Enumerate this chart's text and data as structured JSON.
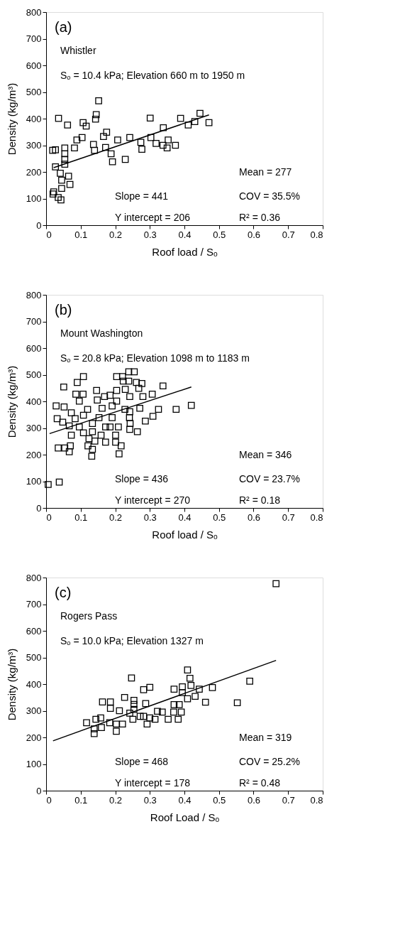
{
  "chart_data": [
    {
      "type": "scatter",
      "xlabel": "Roof load / Sₒ",
      "ylabel": "Density (kg/m³)",
      "xlim": [
        0,
        0.8
      ],
      "ylim": [
        0,
        800
      ],
      "xticks": [
        0,
        0.1,
        0.2,
        0.3,
        0.4,
        0.5,
        0.6,
        0.7,
        0.8
      ],
      "yticks": [
        0,
        100,
        200,
        300,
        400,
        500,
        600,
        700,
        800
      ],
      "grid": false,
      "annotations": [
        "(a)",
        "Whistler",
        "Sₒ = 10.4 kPa; Elevation 660 m to 1950 m",
        "Mean = 277",
        "COV = 35.5%",
        "R² = 0.36",
        "Slope = 441",
        "Y intercept = 206"
      ],
      "series": [
        {
          "type": "scatter",
          "marker": "square",
          "color": "#000000",
          "x": [
            0.019,
            0.027,
            0.036,
            0.062,
            0.054,
            0.054,
            0.054,
            0.054,
            0.027,
            0.041,
            0.045,
            0.065,
            0.069,
            0.045,
            0.022,
            0.02,
            0.035,
            0.043,
            0.082,
            0.089,
            0.104,
            0.107,
            0.116,
            0.137,
            0.14,
            0.143,
            0.145,
            0.152,
            0.166,
            0.175,
            0.172,
            0.188,
            0.192,
            0.207,
            0.229,
            0.242,
            0.274,
            0.277,
            0.301,
            0.303,
            0.318,
            0.339,
            0.338,
            0.353,
            0.35,
            0.374,
            0.389,
            0.411,
            0.43,
            0.445,
            0.471
          ],
          "values": [
            281,
            283,
            401,
            376,
            290,
            268,
            247,
            229,
            219,
            195,
            169,
            184,
            153,
            138,
            125,
            117,
            104,
            95,
            290,
            320,
            329,
            385,
            372,
            303,
            281,
            398,
            415,
            467,
            333,
            349,
            292,
            268,
            238,
            320,
            247,
            329,
            311,
            285,
            402,
            329,
            307,
            366,
            300,
            320,
            290,
            300,
            401,
            376,
            389,
            420,
            385
          ]
        },
        {
          "type": "line",
          "line_style": "solid",
          "marker": "none",
          "color": "#000000",
          "x": [
            0.022,
            0.471
          ],
          "values": [
            216,
            414
          ]
        }
      ]
    },
    {
      "type": "scatter",
      "xlabel": "Roof load / Sₒ",
      "ylabel": "Density (kg/m³)",
      "xlim": [
        0,
        0.8
      ],
      "ylim": [
        0,
        800
      ],
      "xticks": [
        0,
        0.1,
        0.2,
        0.3,
        0.4,
        0.5,
        0.6,
        0.7,
        0.8
      ],
      "yticks": [
        0,
        100,
        200,
        300,
        400,
        500,
        600,
        700,
        800
      ],
      "grid": false,
      "annotations": [
        "(b)",
        "Mount Washington",
        "Sₒ = 20.8 kPa; Elevation 1098 m to 1183 m",
        "Mean = 346",
        "COV = 23.7%",
        "R² = 0.18",
        "Slope = 436",
        "Y intercept = 270"
      ],
      "series": [
        {
          "type": "scatter",
          "marker": "square",
          "color": "#000000",
          "x": [
            0.006,
            0.038,
            0.051,
            0.09,
            0.108,
            0.107,
            0.096,
            0.029,
            0.052,
            0.032,
            0.048,
            0.067,
            0.084,
            0.073,
            0.073,
            0.035,
            0.054,
            0.07,
            0.067,
            0.096,
            0.108,
            0.12,
            0.124,
            0.121,
            0.134,
            0.132,
            0.141,
            0.134,
            0.146,
            0.148,
            0.153,
            0.159,
            0.162,
            0.169,
            0.172,
            0.172,
            0.185,
            0.185,
            0.191,
            0.201,
            0.201,
            0.204,
            0.204,
            0.204,
            0.209,
            0.211,
            0.217,
            0.221,
            0.223,
            0.229,
            0.228,
            0.239,
            0.255,
            0.239,
            0.242,
            0.242,
            0.241,
            0.243,
            0.242,
            0.264,
            0.261,
            0.277,
            0.268,
            0.271,
            0.28,
            0.287,
            0.307,
            0.309,
            0.325,
            0.338,
            0.376,
            0.42,
            0.134,
            0.108,
            0.086,
            0.191
          ],
          "values": [
            88,
            97,
            454,
            471,
            493,
            427,
            401,
            383,
            379,
            335,
            322,
            308,
            335,
            357,
            273,
            225,
            225,
            233,
            211,
            304,
            282,
            370,
            260,
            233,
            220,
            194,
            251,
            317,
            441,
            405,
            339,
            273,
            374,
            418,
            304,
            247,
            423,
            304,
            339,
            273,
            247,
            493,
            441,
            401,
            304,
            203,
            233,
            493,
            476,
            445,
            370,
            511,
            511,
            476,
            418,
            361,
            339,
            317,
            295,
            286,
            471,
            467,
            449,
            374,
            418,
            326,
            427,
            344,
            370,
            458,
            370,
            385,
            286,
            348,
            427,
            383
          ]
        },
        {
          "type": "line",
          "line_style": "solid",
          "marker": "none",
          "color": "#000000",
          "x": [
            0.01,
            0.42
          ],
          "values": [
            279,
            454
          ]
        }
      ]
    },
    {
      "type": "scatter",
      "xlabel": "Roof Load / Sₒ",
      "ylabel": "Density (kg/m³)",
      "xlim": [
        0,
        0.8
      ],
      "ylim": [
        0,
        800
      ],
      "xticks": [
        0,
        0.1,
        0.2,
        0.3,
        0.4,
        0.5,
        0.6,
        0.7,
        0.8
      ],
      "yticks": [
        0,
        100,
        200,
        300,
        400,
        500,
        600,
        700,
        800
      ],
      "grid": false,
      "annotations": [
        "(c)",
        "Rogers Pass",
        "Sₒ = 10.0 kPa; Elevation 1327 m",
        "Mean = 319",
        "COV = 25.2%",
        "R² = 0.48",
        "Slope = 468",
        "Y intercept = 178"
      ],
      "series": [
        {
          "type": "scatter",
          "marker": "square",
          "color": "#000000",
          "x": [
            0.665,
            0.117,
            0.139,
            0.139,
            0.144,
            0.158,
            0.16,
            0.163,
            0.186,
            0.186,
            0.184,
            0.203,
            0.203,
            0.212,
            0.221,
            0.227,
            0.242,
            0.247,
            0.251,
            0.254,
            0.254,
            0.272,
            0.282,
            0.288,
            0.292,
            0.3,
            0.3,
            0.315,
            0.322,
            0.336,
            0.353,
            0.37,
            0.37,
            0.369,
            0.382,
            0.385,
            0.391,
            0.394,
            0.394,
            0.409,
            0.416,
            0.419,
            0.409,
            0.431,
            0.443,
            0.461,
            0.481,
            0.553,
            0.589,
            0.254,
            0.282
          ],
          "values": [
            777,
            255,
            232,
            214,
            268,
            273,
            237,
            333,
            333,
            309,
            255,
            250,
            223,
            300,
            250,
            350,
            291,
            423,
            268,
            339,
            324,
            279,
            379,
            327,
            250,
            388,
            273,
            268,
            298,
            295,
            268,
            381,
            323,
            295,
            268,
            323,
            295,
            390,
            368,
            453,
            422,
            395,
            345,
            354,
            381,
            332,
            387,
            330,
            411,
            305,
            279
          ]
        },
        {
          "type": "line",
          "line_style": "solid",
          "marker": "none",
          "color": "#000000",
          "x": [
            0.02,
            0.665
          ],
          "values": [
            187,
            489
          ]
        }
      ]
    }
  ]
}
